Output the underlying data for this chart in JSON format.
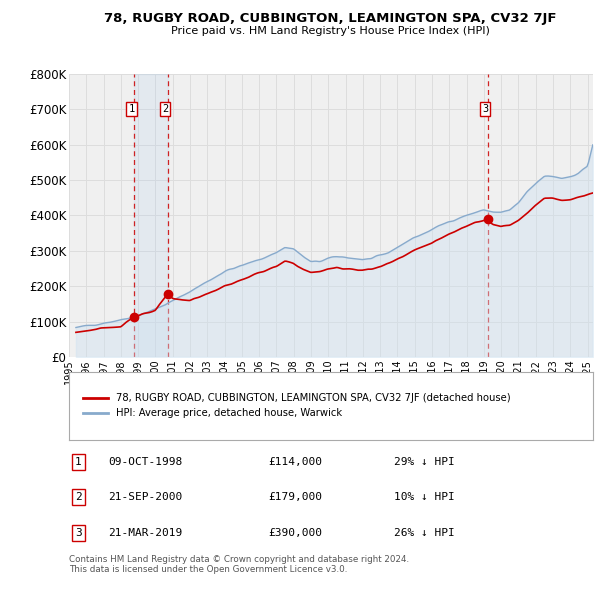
{
  "title": "78, RUGBY ROAD, CUBBINGTON, LEAMINGTON SPA, CV32 7JF",
  "subtitle": "Price paid vs. HM Land Registry's House Price Index (HPI)",
  "ylim": [
    0,
    800000
  ],
  "yticks": [
    0,
    100000,
    200000,
    300000,
    400000,
    500000,
    600000,
    700000,
    800000
  ],
  "ytick_labels": [
    "£0",
    "£100K",
    "£200K",
    "£300K",
    "£400K",
    "£500K",
    "£600K",
    "£700K",
    "£800K"
  ],
  "xlim_start": 1995.4,
  "xlim_end": 2025.3,
  "xtick_years": [
    1995,
    1996,
    1997,
    1998,
    1999,
    2000,
    2001,
    2002,
    2003,
    2004,
    2005,
    2006,
    2007,
    2008,
    2009,
    2010,
    2011,
    2012,
    2013,
    2014,
    2015,
    2016,
    2017,
    2018,
    2019,
    2020,
    2021,
    2022,
    2023,
    2024,
    2025
  ],
  "sale_color": "#cc0000",
  "hpi_color": "#88aacc",
  "hpi_fill_color": "#cce0f0",
  "background_color": "#ffffff",
  "plot_bg_color": "#f0f0f0",
  "grid_color": "#dddddd",
  "legend_label_sale": "78, RUGBY ROAD, CUBBINGTON, LEAMINGTON SPA, CV32 7JF (detached house)",
  "legend_label_hpi": "HPI: Average price, detached house, Warwick",
  "transactions": [
    {
      "num": 1,
      "date": "09-OCT-1998",
      "price": 114000,
      "year": 1998.77,
      "hpi_pct": "29% ↓ HPI"
    },
    {
      "num": 2,
      "date": "21-SEP-2000",
      "price": 179000,
      "year": 2000.72,
      "hpi_pct": "10% ↓ HPI"
    },
    {
      "num": 3,
      "date": "21-MAR-2019",
      "price": 390000,
      "year": 2019.22,
      "hpi_pct": "26% ↓ HPI"
    }
  ],
  "footer_line1": "Contains HM Land Registry data © Crown copyright and database right 2024.",
  "footer_line2": "This data is licensed under the Open Government Licence v3.0."
}
